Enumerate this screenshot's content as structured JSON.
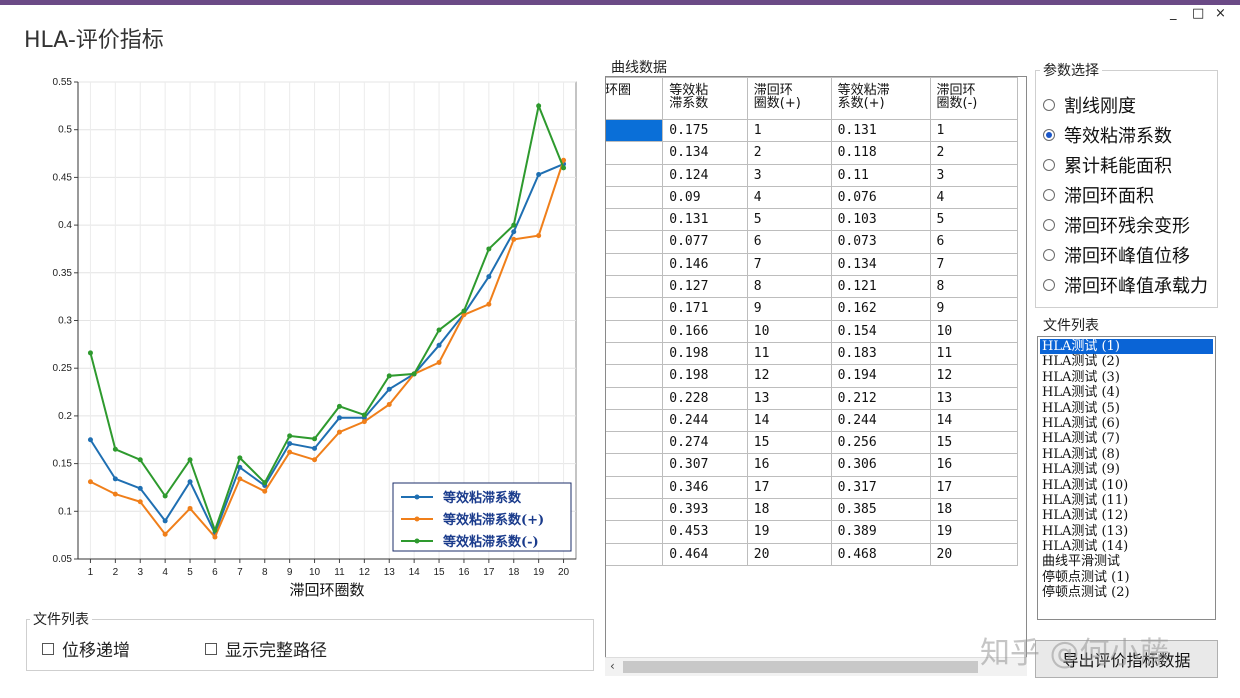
{
  "window": {
    "title": "HLA-评价指标",
    "controls": [
      "_",
      "□",
      "×"
    ]
  },
  "colors": {
    "series1": "#1f6fb2",
    "series2": "#f07f1a",
    "series3": "#2e9a2e",
    "selection": "#0a64d6",
    "topbar": "#6b4a86"
  },
  "chart_data": {
    "type": "line",
    "xlabel": "滞回环圈数",
    "ylabel": "",
    "x": [
      1,
      2,
      3,
      4,
      5,
      6,
      7,
      8,
      9,
      10,
      11,
      12,
      13,
      14,
      15,
      16,
      17,
      18,
      19,
      20
    ],
    "ylim": [
      0.05,
      0.55
    ],
    "yticks": [
      0.05,
      0.1,
      0.15,
      0.2,
      0.25,
      0.3,
      0.35,
      0.4,
      0.45,
      0.5,
      0.55
    ],
    "grid": true,
    "legend_position": "bottom-right",
    "series": [
      {
        "name": "等效粘滞系数",
        "color": "#1f6fb2",
        "values": [
          0.175,
          0.134,
          0.124,
          0.09,
          0.131,
          0.077,
          0.146,
          0.127,
          0.171,
          0.166,
          0.198,
          0.198,
          0.228,
          0.244,
          0.274,
          0.307,
          0.346,
          0.393,
          0.453,
          0.464
        ]
      },
      {
        "name": "等效粘滞系数(+)",
        "color": "#f07f1a",
        "values": [
          0.131,
          0.118,
          0.11,
          0.076,
          0.103,
          0.073,
          0.134,
          0.121,
          0.162,
          0.154,
          0.183,
          0.194,
          0.212,
          0.244,
          0.256,
          0.306,
          0.317,
          0.385,
          0.389,
          0.468
        ]
      },
      {
        "name": "等效粘滞系数(-)",
        "color": "#2e9a2e",
        "values": [
          0.266,
          0.165,
          0.154,
          0.116,
          0.154,
          0.08,
          0.156,
          0.13,
          0.179,
          0.176,
          0.21,
          0.201,
          0.242,
          0.244,
          0.29,
          0.31,
          0.375,
          0.4,
          0.525,
          0.46
        ]
      }
    ]
  },
  "file_options": {
    "label": "文件列表",
    "checkbox1": "位移递增",
    "checkbox2": "显示完整路径"
  },
  "table": {
    "label": "曲线数据",
    "headers": [
      "环圈",
      "等效粘\n滞系数",
      "滞回环\n圈数(+)",
      "等效粘滞\n系数(+)",
      "滞回环\n圈数(-)"
    ],
    "rows": [
      [
        "",
        "0.175",
        "1",
        "0.131",
        "1"
      ],
      [
        "",
        "0.134",
        "2",
        "0.118",
        "2"
      ],
      [
        "",
        "0.124",
        "3",
        "0.11",
        "3"
      ],
      [
        "",
        "0.09",
        "4",
        "0.076",
        "4"
      ],
      [
        "",
        "0.131",
        "5",
        "0.103",
        "5"
      ],
      [
        "",
        "0.077",
        "6",
        "0.073",
        "6"
      ],
      [
        "",
        "0.146",
        "7",
        "0.134",
        "7"
      ],
      [
        "",
        "0.127",
        "8",
        "0.121",
        "8"
      ],
      [
        "",
        "0.171",
        "9",
        "0.162",
        "9"
      ],
      [
        "",
        "0.166",
        "10",
        "0.154",
        "10"
      ],
      [
        "",
        "0.198",
        "11",
        "0.183",
        "11"
      ],
      [
        "",
        "0.198",
        "12",
        "0.194",
        "12"
      ],
      [
        "",
        "0.228",
        "13",
        "0.212",
        "13"
      ],
      [
        "",
        "0.244",
        "14",
        "0.244",
        "14"
      ],
      [
        "",
        "0.274",
        "15",
        "0.256",
        "15"
      ],
      [
        "",
        "0.307",
        "16",
        "0.306",
        "16"
      ],
      [
        "",
        "0.346",
        "17",
        "0.317",
        "17"
      ],
      [
        "",
        "0.393",
        "18",
        "0.385",
        "18"
      ],
      [
        "",
        "0.453",
        "19",
        "0.389",
        "19"
      ],
      [
        "",
        "0.464",
        "20",
        "0.468",
        "20"
      ]
    ]
  },
  "params": {
    "label": "参数选择",
    "selected_index": 1,
    "options": [
      "割线刚度",
      "等效粘滞系数",
      "累计耗能面积",
      "滞回环面积",
      "滞回环残余变形",
      "滞回环峰值位移",
      "滞回环峰值承载力"
    ]
  },
  "file_list": {
    "label": "文件列表",
    "selected_index": 0,
    "items": [
      "HLA测试 (1)",
      "HLA测试 (2)",
      "HLA测试 (3)",
      "HLA测试 (4)",
      "HLA测试 (5)",
      "HLA测试 (6)",
      "HLA测试 (7)",
      "HLA测试 (8)",
      "HLA测试 (9)",
      "HLA测试 (10)",
      "HLA测试 (11)",
      "HLA测试 (12)",
      "HLA测试 (13)",
      "HLA测试 (14)",
      "曲线平滑测试",
      "停顿点测试 (1)",
      "停顿点测试 (2)"
    ]
  },
  "export_button": "导出评价指标数据",
  "watermark": "知乎 @何小藤"
}
